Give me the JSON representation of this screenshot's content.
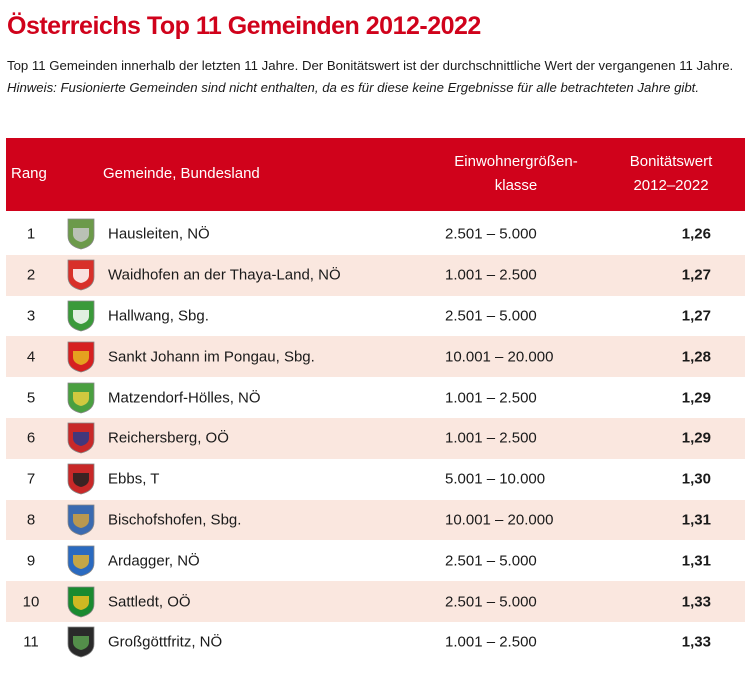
{
  "title": "Österreichs Top 11 Gemeinden 2012-2022",
  "intro": {
    "text": "Top 11 Gemeinden innerhalb der letzten 11 Jahre. Der Bonitätswert ist der durchschnittliche Wert der vergangenen 11 Jahre. ",
    "note": "Hinweis: Fusionierte Gemeinden sind nicht enthalten, da es für diese keine Ergebnisse für alle betrachteten Jahre gibt."
  },
  "header": {
    "rang": "Rang",
    "gemeinde": "Gemeinde, Bundesland",
    "klasse1": "Einwohnergrößen-",
    "klasse2": "klasse",
    "wert1": "Bonitätswert",
    "wert2": "2012–2022"
  },
  "colors": {
    "accent": "#d0021b",
    "alt_row": "#fae7df"
  },
  "rows": [
    {
      "rang": "1",
      "name": "Hausleiten, NÖ",
      "klasse": "2.501 – 5.000",
      "wert": "1,26",
      "crest": "crest-green-grey",
      "c1": "#6c9a4a",
      "c2": "#c8c8c8"
    },
    {
      "rang": "2",
      "name": "Waidhofen an der Thaya-Land, NÖ",
      "klasse": "1.001 – 2.500",
      "wert": "1,27",
      "crest": "crest-red-white",
      "c1": "#d8302a",
      "c2": "#ffffff"
    },
    {
      "rang": "3",
      "name": "Hallwang, Sbg.",
      "klasse": "2.501 – 5.000",
      "wert": "1,27",
      "crest": "crest-green-white",
      "c1": "#3a9a3a",
      "c2": "#ffffff"
    },
    {
      "rang": "4",
      "name": "Sankt Johann im Pongau, Sbg.",
      "klasse": "10.001 – 20.000",
      "wert": "1,28",
      "crest": "crest-red-gold",
      "c1": "#d62020",
      "c2": "#e8b820"
    },
    {
      "rang": "5",
      "name": "Matzendorf-Hölles, NÖ",
      "klasse": "1.001 – 2.500",
      "wert": "1,29",
      "crest": "crest-green-yellow",
      "c1": "#4aa040",
      "c2": "#e8d040"
    },
    {
      "rang": "6",
      "name": "Reichersberg, OÖ",
      "klasse": "1.001 – 2.500",
      "wert": "1,29",
      "crest": "crest-red-blue",
      "c1": "#c82828",
      "c2": "#2a3a8a"
    },
    {
      "rang": "7",
      "name": "Ebbs, T",
      "klasse": "5.001 – 10.000",
      "wert": "1,30",
      "crest": "crest-red-black",
      "c1": "#c82828",
      "c2": "#222222"
    },
    {
      "rang": "8",
      "name": "Bischofshofen, Sbg.",
      "klasse": "10.001 – 20.000",
      "wert": "1,31",
      "crest": "crest-blue-grey",
      "c1": "#3a6ab0",
      "c2": "#d0a040"
    },
    {
      "rang": "9",
      "name": "Ardagger, NÖ",
      "klasse": "2.501 – 5.000",
      "wert": "1,31",
      "crest": "crest-blue-gold",
      "c1": "#2a6ac0",
      "c2": "#e0b030"
    },
    {
      "rang": "10",
      "name": "Sattledt, OÖ",
      "klasse": "2.501 – 5.000",
      "wert": "1,33",
      "crest": "crest-green-gold",
      "c1": "#1a8a30",
      "c2": "#f0c020"
    },
    {
      "rang": "11",
      "name": "Großgöttfritz, NÖ",
      "klasse": "1.001 – 2.500",
      "wert": "1,33",
      "crest": "crest-black-green",
      "c1": "#2a2a2a",
      "c2": "#5aa050"
    }
  ]
}
